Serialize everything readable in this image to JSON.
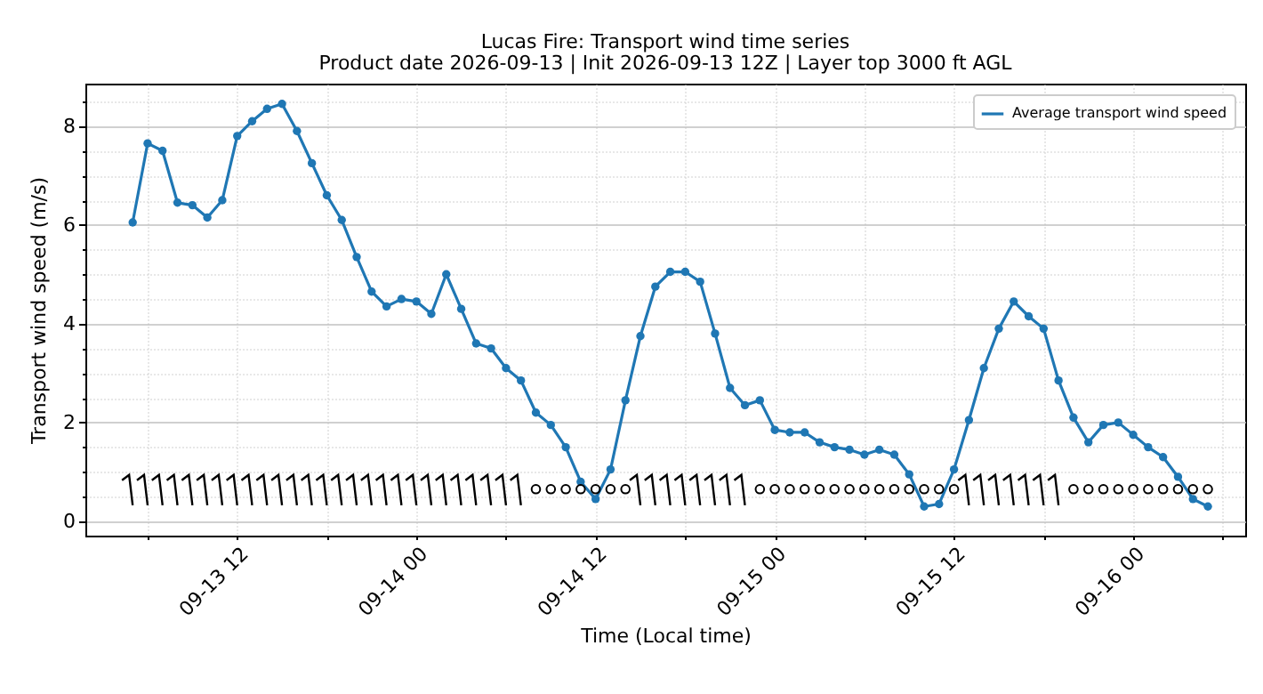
{
  "chart_data": {
    "type": "line",
    "title": "Lucas Fire: Transport wind time series",
    "subtitle": "Product date 2026-09-13 | Init 2026-09-13 12Z | Layer top 3000 ft AGL",
    "xlabel": "Time (Local time)",
    "ylabel": "Transport wind speed (m/s)",
    "x": [
      "2026-09-13T05:00",
      "2026-09-13T06:00",
      "2026-09-13T07:00",
      "2026-09-13T08:00",
      "2026-09-13T09:00",
      "2026-09-13T10:00",
      "2026-09-13T11:00",
      "2026-09-13T12:00",
      "2026-09-13T13:00",
      "2026-09-13T14:00",
      "2026-09-13T15:00",
      "2026-09-13T16:00",
      "2026-09-13T17:00",
      "2026-09-13T18:00",
      "2026-09-13T19:00",
      "2026-09-13T20:00",
      "2026-09-13T21:00",
      "2026-09-13T22:00",
      "2026-09-13T23:00",
      "2026-09-14T00:00",
      "2026-09-14T01:00",
      "2026-09-14T02:00",
      "2026-09-14T03:00",
      "2026-09-14T04:00",
      "2026-09-14T05:00",
      "2026-09-14T06:00",
      "2026-09-14T07:00",
      "2026-09-14T08:00",
      "2026-09-14T09:00",
      "2026-09-14T10:00",
      "2026-09-14T11:00",
      "2026-09-14T12:00",
      "2026-09-14T13:00",
      "2026-09-14T14:00",
      "2026-09-14T15:00",
      "2026-09-14T16:00",
      "2026-09-14T17:00",
      "2026-09-14T18:00",
      "2026-09-14T19:00",
      "2026-09-14T20:00",
      "2026-09-14T21:00",
      "2026-09-14T22:00",
      "2026-09-14T23:00",
      "2026-09-15T00:00",
      "2026-09-15T01:00",
      "2026-09-15T02:00",
      "2026-09-15T03:00",
      "2026-09-15T04:00",
      "2026-09-15T05:00",
      "2026-09-15T06:00",
      "2026-09-15T07:00",
      "2026-09-15T08:00",
      "2026-09-15T09:00",
      "2026-09-15T10:00",
      "2026-09-15T11:00",
      "2026-09-15T12:00",
      "2026-09-15T13:00",
      "2026-09-15T14:00",
      "2026-09-15T15:00",
      "2026-09-15T16:00",
      "2026-09-15T17:00",
      "2026-09-15T18:00",
      "2026-09-15T19:00",
      "2026-09-15T20:00",
      "2026-09-15T21:00",
      "2026-09-15T22:00",
      "2026-09-15T23:00",
      "2026-09-16T00:00",
      "2026-09-16T01:00",
      "2026-09-16T02:00",
      "2026-09-16T03:00",
      "2026-09-16T04:00",
      "2026-09-16T05:00"
    ],
    "series": [
      {
        "name": "Average transport wind speed",
        "color": "#1f77b4",
        "values": [
          6.05,
          7.65,
          7.5,
          6.45,
          6.4,
          6.15,
          6.5,
          7.8,
          8.1,
          8.35,
          8.45,
          7.9,
          7.25,
          6.6,
          6.1,
          5.35,
          4.65,
          4.35,
          4.5,
          4.45,
          4.2,
          5.0,
          4.3,
          3.6,
          3.5,
          3.1,
          2.85,
          2.2,
          1.95,
          1.5,
          0.8,
          0.45,
          1.05,
          2.45,
          3.75,
          4.75,
          5.05,
          5.05,
          4.85,
          3.8,
          2.7,
          2.35,
          2.45,
          1.85,
          1.8,
          1.8,
          1.6,
          1.5,
          1.45,
          1.35,
          1.45,
          1.35,
          0.95,
          0.3,
          0.35,
          1.05,
          2.05,
          3.1,
          3.9,
          4.45,
          4.15,
          3.9,
          2.85,
          2.1,
          1.6,
          1.95,
          2.0,
          1.75,
          1.5,
          1.3,
          0.9,
          0.45,
          0.3
        ]
      }
    ],
    "xlim": [
      "2026-09-13T01:50",
      "2026-09-16T07:30"
    ],
    "xticks": [
      {
        "value": "2026-09-13T06:00",
        "label": null
      },
      {
        "value": "2026-09-13T12:00",
        "label": "09-13 12"
      },
      {
        "value": "2026-09-13T18:00",
        "label": null
      },
      {
        "value": "2026-09-14T00:00",
        "label": "09-14 00"
      },
      {
        "value": "2026-09-14T06:00",
        "label": null
      },
      {
        "value": "2026-09-14T12:00",
        "label": "09-14 12"
      },
      {
        "value": "2026-09-14T18:00",
        "label": null
      },
      {
        "value": "2026-09-15T00:00",
        "label": "09-15 00"
      },
      {
        "value": "2026-09-15T06:00",
        "label": null
      },
      {
        "value": "2026-09-15T12:00",
        "label": "09-15 12"
      },
      {
        "value": "2026-09-15T18:00",
        "label": null
      },
      {
        "value": "2026-09-16T00:00",
        "label": "09-16 00"
      },
      {
        "value": "2026-09-16T06:00",
        "label": null
      }
    ],
    "ylim": [
      -0.29,
      8.86
    ],
    "yticks": [
      0,
      {
        "value": 0.5,
        "label": null
      },
      {
        "value": 1,
        "label": null
      },
      {
        "value": 1.5,
        "label": null
      },
      2,
      {
        "value": 2.5,
        "label": null
      },
      {
        "value": 3,
        "label": null
      },
      {
        "value": 3.5,
        "label": null
      },
      4,
      {
        "value": 4.5,
        "label": null
      },
      {
        "value": 5,
        "label": null
      },
      {
        "value": 5.5,
        "label": null
      },
      6,
      {
        "value": 6.5,
        "label": null
      },
      {
        "value": 7,
        "label": null
      },
      {
        "value": 7.5,
        "label": null
      },
      8,
      {
        "value": 8.5,
        "label": null
      }
    ],
    "grid": true,
    "legend": "top right",
    "marker": "circle"
  }
}
